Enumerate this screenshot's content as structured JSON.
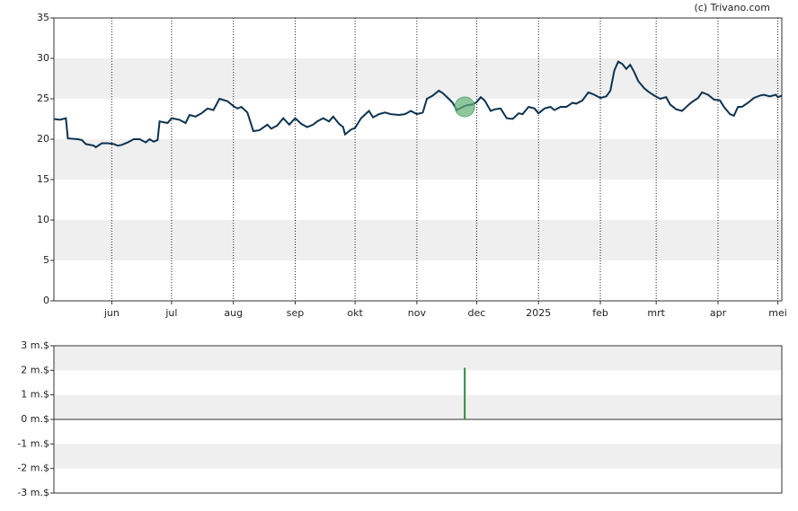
{
  "credit": "(c) Trivano.com",
  "chart_data": [
    {
      "type": "line",
      "x": [
        -29,
        -26,
        -23,
        -22,
        -17,
        -15,
        -13,
        -9,
        -8,
        -5,
        -2,
        1,
        3,
        5,
        8,
        11,
        14,
        17,
        19,
        21,
        23,
        24,
        28,
        30,
        34,
        37,
        39,
        42,
        45,
        48,
        51,
        54,
        58,
        61,
        63,
        65,
        68,
        71,
        74,
        78,
        80,
        83,
        86,
        89,
        92,
        95,
        98,
        101,
        103,
        106,
        109,
        111,
        114,
        116,
        117,
        120,
        122,
        125,
        129,
        131,
        134,
        137,
        140,
        144,
        147,
        150,
        153,
        156,
        158,
        161,
        164,
        166,
        169,
        171,
        173,
        176,
        178,
        181,
        183,
        185,
        187,
        190,
        192,
        195,
        198,
        201,
        204,
        206,
        209,
        212,
        214,
        217,
        220,
        222,
        225,
        228,
        231,
        233,
        236,
        239,
        242,
        245,
        248,
        250,
        252,
        254,
        256,
        258,
        260,
        262,
        264,
        267,
        269,
        272,
        275,
        278,
        280,
        283,
        286,
        289,
        291,
        294,
        296,
        299,
        302,
        305,
        307,
        310,
        312,
        314,
        316,
        319,
        322,
        325,
        327,
        330,
        333,
        334,
        336
      ],
      "series": [
        {
          "color": "#0d3350",
          "values": [
            22.5,
            22.4,
            22.6,
            20.1,
            20,
            19.9,
            19.4,
            19.2,
            19,
            19.5,
            19.5,
            19.4,
            19.2,
            19.3,
            19.6,
            20,
            20,
            19.6,
            20,
            19.7,
            19.9,
            22.2,
            22,
            22.6,
            22.4,
            22,
            23,
            22.8,
            23.2,
            23.8,
            23.6,
            25,
            24.7,
            24.1,
            23.8,
            24,
            23.3,
            21,
            21.1,
            21.8,
            21.3,
            21.7,
            22.6,
            21.8,
            22.6,
            21.9,
            21.5,
            21.8,
            22.2,
            22.6,
            22.2,
            22.8,
            21.9,
            21.5,
            20.6,
            21.2,
            21.4,
            22.6,
            23.5,
            22.7,
            23.1,
            23.3,
            23.1,
            23,
            23.1,
            23.5,
            23.1,
            23.3,
            25,
            25.4,
            26,
            25.7,
            25,
            24.5,
            23.6,
            24,
            24.2,
            24.3,
            24.6,
            25.2,
            24.8,
            23.5,
            23.7,
            23.8,
            22.6,
            22.5,
            23.2,
            23.1,
            24,
            23.8,
            23.2,
            23.8,
            24,
            23.6,
            24,
            24,
            24.5,
            24.4,
            24.8,
            25.8,
            25.5,
            25.1,
            25.3,
            26,
            28.5,
            29.6,
            29.3,
            28.7,
            29.2,
            28.3,
            27.2,
            26.3,
            25.9,
            25.4,
            25,
            25.2,
            24.3,
            23.7,
            23.5,
            24.2,
            24.6,
            25.1,
            25.8,
            25.5,
            24.9,
            24.8,
            24,
            23.1,
            22.9,
            24,
            24,
            24.5,
            25.1,
            25.4,
            25.5,
            25.3,
            25.5,
            25.2,
            25.4
          ]
        }
      ],
      "events": [
        {
          "x": 177,
          "y": 24,
          "color": "#5fae73"
        }
      ],
      "xlim": [
        -29,
        336
      ],
      "xticks": [
        {
          "value": 0,
          "label": "jun"
        },
        {
          "value": 30,
          "label": "jul"
        },
        {
          "value": 61,
          "label": "aug"
        },
        {
          "value": 92,
          "label": "sep"
        },
        {
          "value": 122,
          "label": "okt"
        },
        {
          "value": 153,
          "label": "nov"
        },
        {
          "value": 183,
          "label": "dec"
        },
        {
          "value": 214,
          "label": "2025"
        },
        {
          "value": 245,
          "label": "feb"
        },
        {
          "value": 273,
          "label": "mrt"
        },
        {
          "value": 304,
          "label": "apr"
        },
        {
          "value": 334,
          "label": "mei"
        }
      ],
      "ylim": [
        0,
        35
      ],
      "yticks": [
        0,
        5,
        10,
        15,
        20,
        25,
        30,
        35
      ],
      "banded": true,
      "grid": true
    },
    {
      "type": "bar",
      "x": [
        177
      ],
      "values": [
        2100000
      ],
      "color": "#2e8b3e",
      "xlim": [
        -29,
        336
      ],
      "ylim": [
        -3000000,
        3000000
      ],
      "yticks": [
        {
          "value": -3000000,
          "label": "-3 m.$"
        },
        {
          "value": -2000000,
          "label": "-2 m.$"
        },
        {
          "value": -1000000,
          "label": "-1 m.$"
        },
        {
          "value": 0,
          "label": "0 m.$"
        },
        {
          "value": 1000000,
          "label": "1 m.$"
        },
        {
          "value": 2000000,
          "label": "2 m.$"
        },
        {
          "value": 3000000,
          "label": "3 m.$"
        }
      ],
      "banded": true,
      "grid": false
    }
  ]
}
